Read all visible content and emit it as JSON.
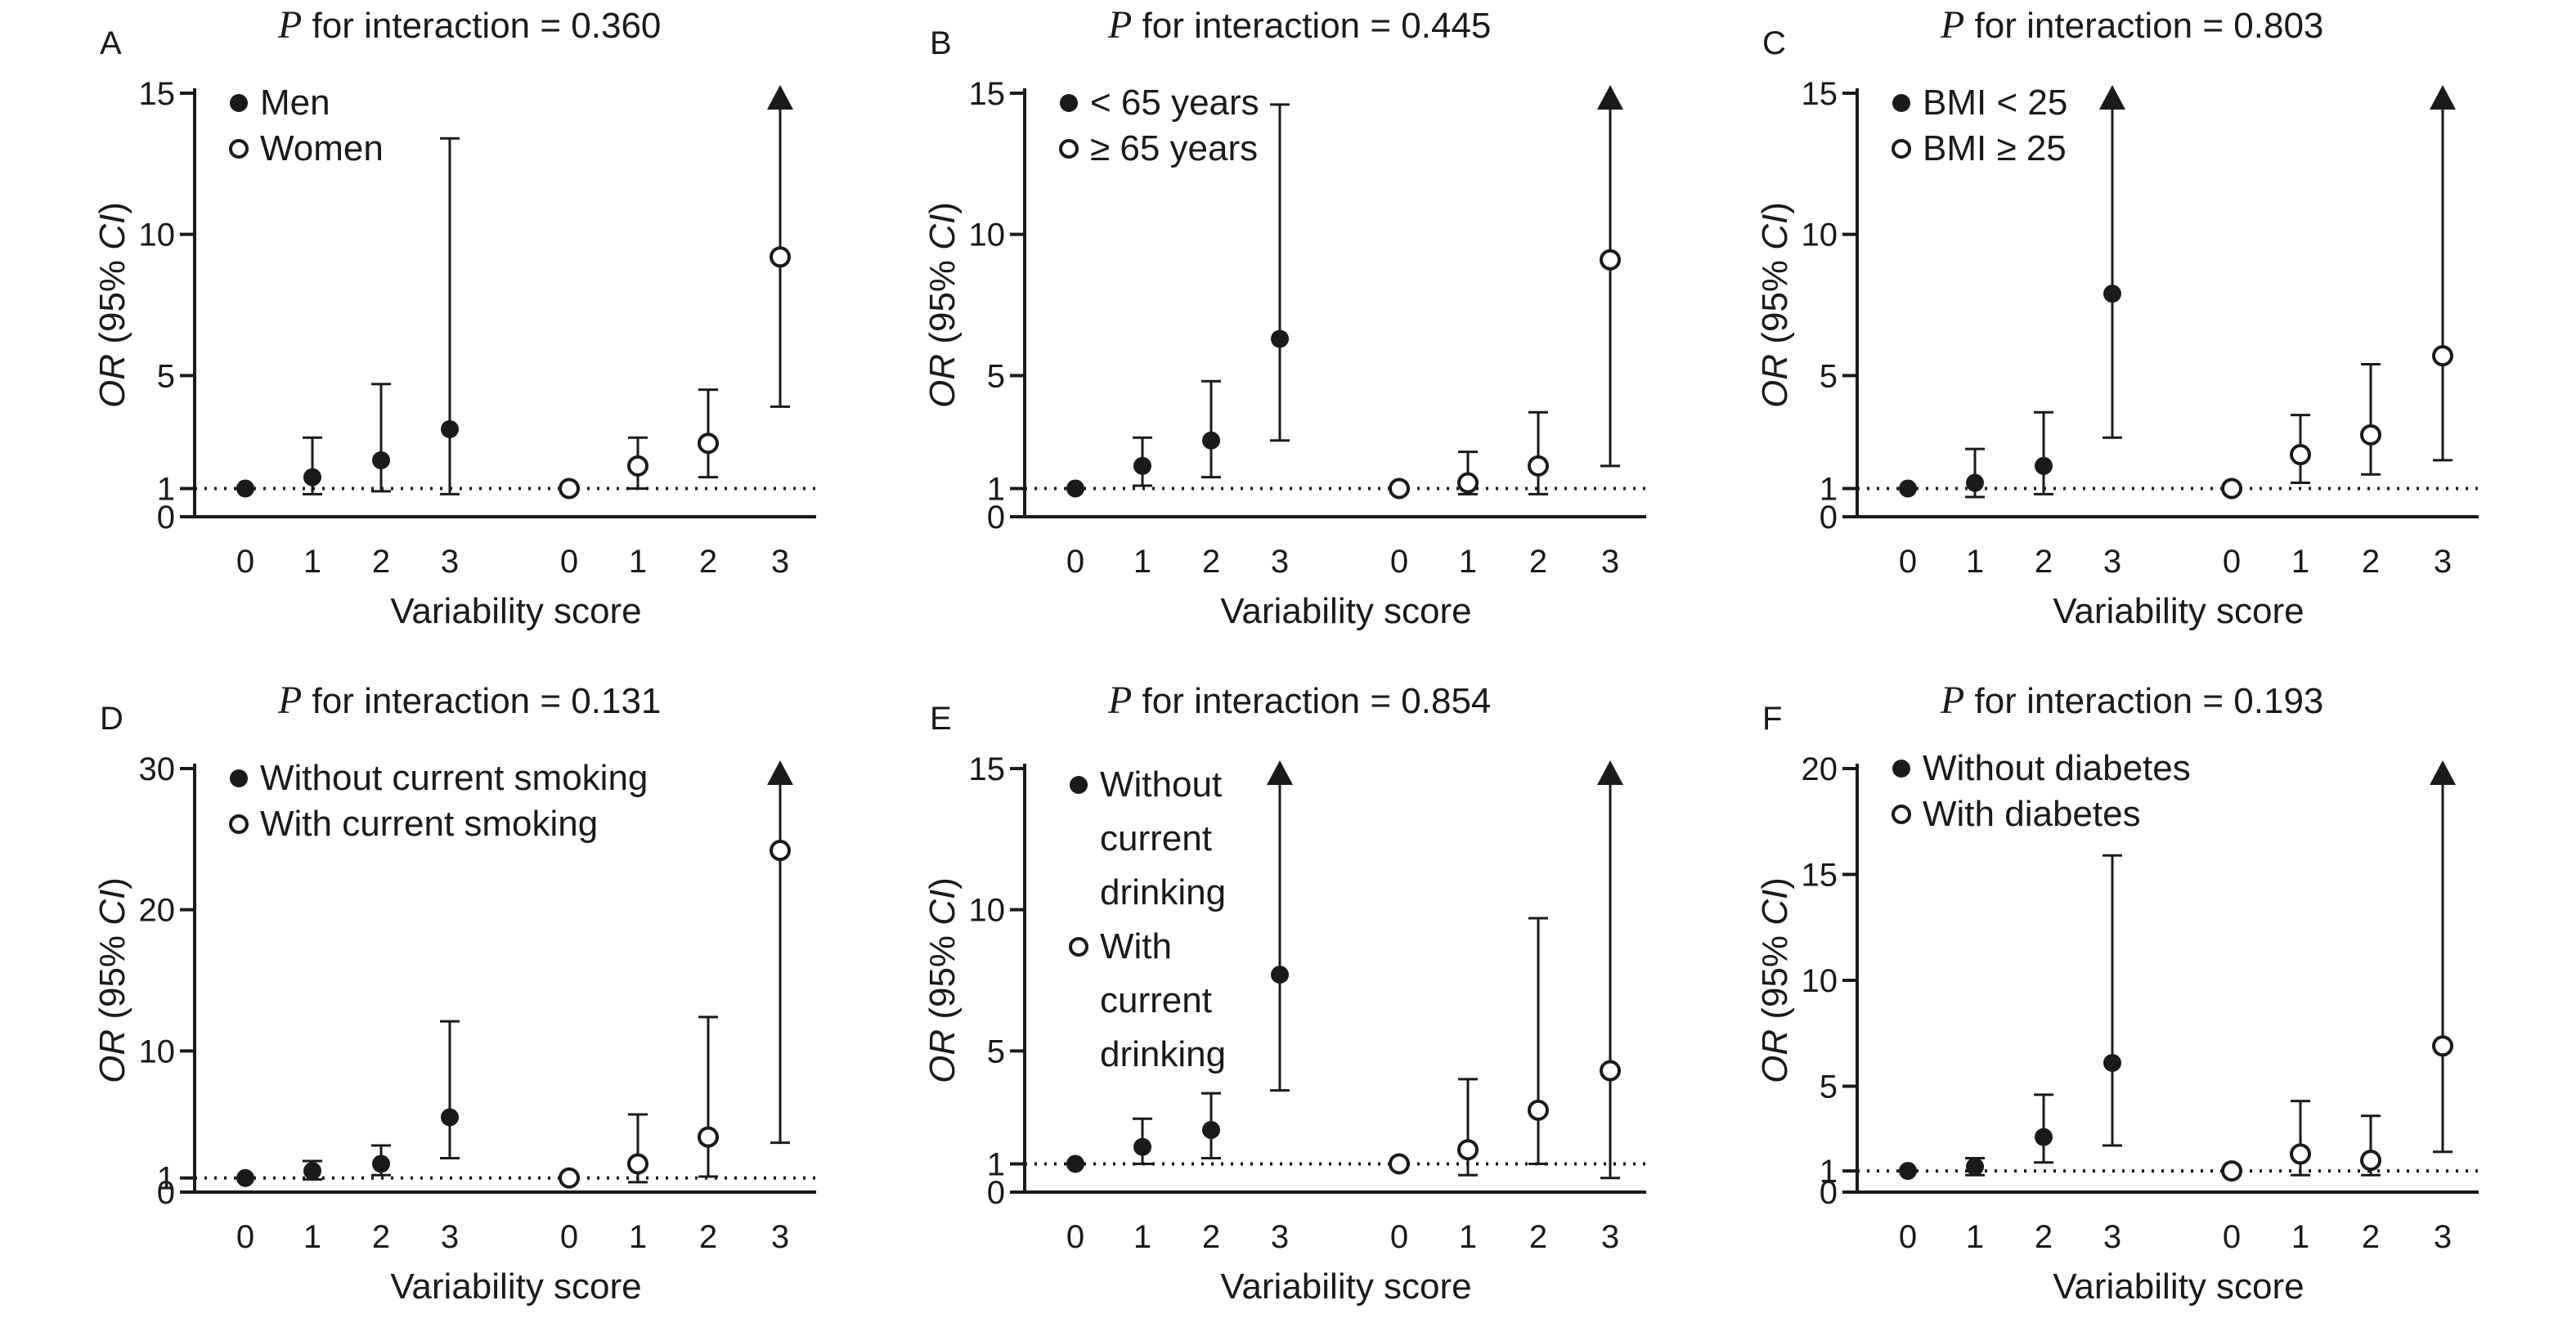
{
  "x_axis_label": "Variability score",
  "chart_data": [
    {
      "type": "scatter",
      "panel": "A",
      "title_prefix": "P",
      "title_rest": " for interaction =  0.360",
      "ylabel_italic": "OR",
      "ylabel_rest": " (95% ",
      "ylabel_italic2": "CI",
      "ylabel_end": ")",
      "xlabel": "Variability score",
      "categories": [
        "0",
        "1",
        "2",
        "3",
        "0",
        "1",
        "2",
        "3"
      ],
      "ylim": [
        0,
        15
      ],
      "yticks": [
        0,
        1,
        5,
        10,
        15
      ],
      "reference_line": 1,
      "legend_lines": [
        {
          "text": "Men",
          "marker": "filled"
        },
        {
          "text": "Women",
          "marker": "open"
        }
      ],
      "series": [
        {
          "name": "Men",
          "marker": "filled",
          "x": [
            0,
            1,
            2,
            3
          ],
          "values": [
            1.0,
            1.4,
            2.0,
            3.1
          ],
          "ci_low": [
            1.0,
            0.8,
            0.9,
            0.8
          ],
          "ci_high": [
            1.0,
            2.8,
            4.7,
            13.4
          ],
          "arrow": [
            false,
            false,
            false,
            false
          ]
        },
        {
          "name": "Women",
          "marker": "open",
          "x": [
            0,
            1,
            2,
            3
          ],
          "values": [
            1.0,
            1.8,
            2.6,
            9.2
          ],
          "ci_low": [
            1.0,
            1.0,
            1.4,
            3.9
          ],
          "ci_high": [
            1.0,
            2.8,
            4.5,
            15.0
          ],
          "arrow": [
            false,
            false,
            false,
            true
          ]
        }
      ]
    },
    {
      "type": "scatter",
      "panel": "B",
      "title_prefix": "P",
      "title_rest": " for interaction =  0.445",
      "ylabel_italic": "OR",
      "ylabel_rest": " (95% ",
      "ylabel_italic2": "CI",
      "ylabel_end": ")",
      "xlabel": "Variability score",
      "categories": [
        "0",
        "1",
        "2",
        "3",
        "0",
        "1",
        "2",
        "3"
      ],
      "ylim": [
        0,
        15
      ],
      "yticks": [
        0,
        1,
        5,
        10,
        15
      ],
      "reference_line": 1,
      "legend_lines": [
        {
          "text": "< 65 years",
          "marker": "filled"
        },
        {
          "text": "≥ 65 years",
          "marker": "open"
        }
      ],
      "series": [
        {
          "name": "< 65 years",
          "marker": "filled",
          "x": [
            0,
            1,
            2,
            3
          ],
          "values": [
            1.0,
            1.8,
            2.7,
            6.3
          ],
          "ci_low": [
            1.0,
            1.1,
            1.4,
            2.7
          ],
          "ci_high": [
            1.0,
            2.8,
            4.8,
            14.6
          ],
          "arrow": [
            false,
            false,
            false,
            false
          ]
        },
        {
          "name": "≥ 65 years",
          "marker": "open",
          "x": [
            0,
            1,
            2,
            3
          ],
          "values": [
            1.0,
            1.2,
            1.8,
            9.1
          ],
          "ci_low": [
            1.0,
            0.8,
            0.8,
            1.8
          ],
          "ci_high": [
            1.0,
            2.3,
            3.7,
            15.0
          ],
          "arrow": [
            false,
            false,
            false,
            true
          ]
        }
      ]
    },
    {
      "type": "scatter",
      "panel": "C",
      "title_prefix": "P",
      "title_rest": " for interaction =  0.803",
      "ylabel_italic": "OR",
      "ylabel_rest": " (95% ",
      "ylabel_italic2": "CI",
      "ylabel_end": ")",
      "xlabel": "Variability score",
      "categories": [
        "0",
        "1",
        "2",
        "3",
        "0",
        "1",
        "2",
        "3"
      ],
      "ylim": [
        0,
        15
      ],
      "yticks": [
        0,
        1,
        5,
        10,
        15
      ],
      "reference_line": 1,
      "legend_lines": [
        {
          "text": "BMI < 25",
          "marker": "filled"
        },
        {
          "text": "BMI ≥ 25",
          "marker": "open"
        }
      ],
      "series": [
        {
          "name": "BMI < 25",
          "marker": "filled",
          "x": [
            0,
            1,
            2,
            3
          ],
          "values": [
            1.0,
            1.2,
            1.8,
            7.9
          ],
          "ci_low": [
            1.0,
            0.7,
            0.8,
            2.8
          ],
          "ci_high": [
            1.0,
            2.4,
            3.7,
            15.0
          ],
          "arrow": [
            false,
            false,
            false,
            true
          ]
        },
        {
          "name": "BMI ≥ 25",
          "marker": "open",
          "x": [
            0,
            1,
            2,
            3
          ],
          "values": [
            1.0,
            2.2,
            2.9,
            5.7
          ],
          "ci_low": [
            1.0,
            1.2,
            1.5,
            2.0
          ],
          "ci_high": [
            1.0,
            3.6,
            5.4,
            15.0
          ],
          "arrow": [
            false,
            false,
            false,
            true
          ]
        }
      ]
    },
    {
      "type": "scatter",
      "panel": "D",
      "title_prefix": "P",
      "title_rest": " for interaction =  0.131",
      "ylabel_italic": "OR",
      "ylabel_rest": " (95% ",
      "ylabel_italic2": "CI",
      "ylabel_end": ")",
      "xlabel": "Variability score",
      "categories": [
        "0",
        "1",
        "2",
        "3",
        "0",
        "1",
        "2",
        "3"
      ],
      "ylim": [
        0,
        30
      ],
      "yticks": [
        0,
        1,
        10,
        20,
        30
      ],
      "reference_line": 1,
      "legend_lines": [
        {
          "text": "Without current smoking",
          "marker": "filled"
        },
        {
          "text": "With current smoking",
          "marker": "open"
        }
      ],
      "series": [
        {
          "name": "Without current smoking",
          "marker": "filled",
          "x": [
            0,
            1,
            2,
            3
          ],
          "values": [
            1.0,
            1.5,
            2.0,
            5.3
          ],
          "ci_low": [
            1.0,
            0.9,
            1.2,
            2.4
          ],
          "ci_high": [
            1.0,
            2.2,
            3.3,
            12.1
          ],
          "arrow": [
            false,
            false,
            false,
            false
          ]
        },
        {
          "name": "With current smoking",
          "marker": "open",
          "x": [
            0,
            1,
            2,
            3
          ],
          "values": [
            1.0,
            2.0,
            3.9,
            24.2
          ],
          "ci_low": [
            1.0,
            0.7,
            1.1,
            3.5
          ],
          "ci_high": [
            1.0,
            5.5,
            12.4,
            30.0
          ],
          "arrow": [
            false,
            false,
            false,
            true
          ]
        }
      ]
    },
    {
      "type": "scatter",
      "panel": "E",
      "title_prefix": "P",
      "title_rest": " for interaction =  0.854",
      "ylabel_italic": "OR",
      "ylabel_rest": " (95% ",
      "ylabel_italic2": "CI",
      "ylabel_end": ")",
      "xlabel": "Variability score",
      "categories": [
        "0",
        "1",
        "2",
        "3",
        "0",
        "1",
        "2",
        "3"
      ],
      "ylim": [
        0,
        15
      ],
      "yticks": [
        0,
        1,
        5,
        10,
        15
      ],
      "reference_line": 1,
      "legend_lines": [
        {
          "text": "Without",
          "marker": "filled"
        },
        {
          "text": "current",
          "marker": "none"
        },
        {
          "text": "drinking",
          "marker": "none"
        },
        {
          "text": "With",
          "marker": "open"
        },
        {
          "text": "current",
          "marker": "none"
        },
        {
          "text": "drinking",
          "marker": "none"
        }
      ],
      "series": [
        {
          "name": "Without current drinking",
          "marker": "filled",
          "x": [
            0,
            1,
            2,
            3
          ],
          "values": [
            1.0,
            1.6,
            2.2,
            7.7
          ],
          "ci_low": [
            1.0,
            1.0,
            1.2,
            3.6
          ],
          "ci_high": [
            1.0,
            2.6,
            3.5,
            15.0
          ],
          "arrow": [
            false,
            false,
            false,
            true
          ]
        },
        {
          "name": "With current drinking",
          "marker": "open",
          "x": [
            0,
            1,
            2,
            3
          ],
          "values": [
            1.0,
            1.5,
            2.9,
            4.3
          ],
          "ci_low": [
            1.0,
            0.6,
            1.0,
            0.5
          ],
          "ci_high": [
            1.0,
            4.0,
            9.7,
            15.0
          ],
          "arrow": [
            false,
            false,
            false,
            true
          ]
        }
      ]
    },
    {
      "type": "scatter",
      "panel": "F",
      "title_prefix": "P",
      "title_rest": " for interaction =  0.193",
      "ylabel_italic": "OR",
      "ylabel_rest": " (95% ",
      "ylabel_italic2": "CI",
      "ylabel_end": ")",
      "xlabel": "Variability score",
      "categories": [
        "0",
        "1",
        "2",
        "3",
        "0",
        "1",
        "2",
        "3"
      ],
      "ylim": [
        0,
        20
      ],
      "yticks": [
        0,
        1,
        5,
        10,
        15,
        20
      ],
      "reference_line": 1,
      "legend_lines": [
        {
          "text": "Without diabetes",
          "marker": "filled"
        },
        {
          "text": "With diabetes",
          "marker": "open"
        }
      ],
      "series": [
        {
          "name": "Without diabetes",
          "marker": "filled",
          "x": [
            0,
            1,
            2,
            3
          ],
          "values": [
            1.0,
            1.2,
            2.6,
            6.1
          ],
          "ci_low": [
            1.0,
            0.8,
            1.4,
            2.2
          ],
          "ci_high": [
            1.0,
            1.6,
            4.6,
            15.9
          ],
          "arrow": [
            false,
            false,
            false,
            false
          ]
        },
        {
          "name": "With diabetes",
          "marker": "open",
          "x": [
            0,
            1,
            2,
            3
          ],
          "values": [
            1.0,
            1.8,
            1.5,
            6.9
          ],
          "ci_low": [
            1.0,
            0.8,
            0.8,
            1.9
          ],
          "ci_high": [
            1.0,
            4.3,
            3.6,
            20.0
          ],
          "arrow": [
            false,
            false,
            false,
            true
          ]
        }
      ]
    }
  ]
}
